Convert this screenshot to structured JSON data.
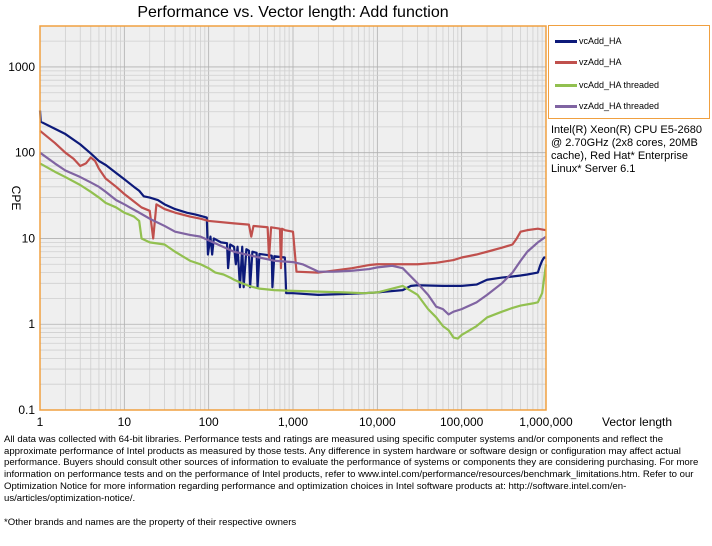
{
  "chart_data": {
    "type": "line",
    "title": "Performance vs. Vector length: Add function",
    "xlabel": "Vector length",
    "ylabel": "CPE",
    "xscale": "log",
    "yscale": "log",
    "xlim": [
      1,
      1000000
    ],
    "ylim": [
      0.1,
      3000
    ],
    "grid": true,
    "legend_position": "right",
    "x_ticks": [
      "1",
      "10",
      "100",
      "1,000",
      "10,000",
      "100,000",
      "1,000,000"
    ],
    "y_ticks": [
      "0.1",
      "1",
      "10",
      "100",
      "1000"
    ],
    "series": [
      {
        "name": "vcAdd_HA",
        "color": "#0d1a7a",
        "points": [
          [
            1,
            310
          ],
          [
            1.02,
            230
          ],
          [
            1.5,
            190
          ],
          [
            2,
            165
          ],
          [
            3,
            125
          ],
          [
            4,
            98
          ],
          [
            5,
            80
          ],
          [
            6,
            72
          ],
          [
            8,
            58
          ],
          [
            10,
            49
          ],
          [
            13,
            40
          ],
          [
            15,
            36
          ],
          [
            17,
            31
          ],
          [
            20,
            30
          ],
          [
            25,
            28
          ],
          [
            30,
            25
          ],
          [
            40,
            22
          ],
          [
            55,
            20
          ],
          [
            70,
            19
          ],
          [
            95,
            17.5
          ],
          [
            98,
            6.5
          ],
          [
            105,
            10.5
          ],
          [
            110,
            6.5
          ],
          [
            115,
            10
          ],
          [
            140,
            9
          ],
          [
            165,
            8.8
          ],
          [
            170,
            4.5
          ],
          [
            180,
            8.5
          ],
          [
            200,
            8
          ],
          [
            210,
            5
          ],
          [
            220,
            8
          ],
          [
            235,
            2.7
          ],
          [
            250,
            8
          ],
          [
            260,
            2.7
          ],
          [
            280,
            7.5
          ],
          [
            300,
            7.2
          ],
          [
            310,
            2.7
          ],
          [
            330,
            7
          ],
          [
            370,
            6.8
          ],
          [
            380,
            2.7
          ],
          [
            400,
            6.6
          ],
          [
            500,
            6.4
          ],
          [
            560,
            6.3
          ],
          [
            570,
            2.7
          ],
          [
            600,
            6.2
          ],
          [
            800,
            6
          ],
          [
            830,
            2.3
          ],
          [
            1000,
            2.3
          ],
          [
            2000,
            2.2
          ],
          [
            4000,
            2.25
          ],
          [
            7000,
            2.3
          ],
          [
            10000,
            2.35
          ],
          [
            20000,
            2.5
          ],
          [
            25000,
            2.8
          ],
          [
            30000,
            2.85
          ],
          [
            60000,
            2.8
          ],
          [
            100000,
            2.8
          ],
          [
            150000,
            2.9
          ],
          [
            200000,
            3.3
          ],
          [
            300000,
            3.5
          ],
          [
            400000,
            3.6
          ],
          [
            500000,
            3.7
          ],
          [
            600000,
            3.8
          ],
          [
            800000,
            4
          ],
          [
            850000,
            4.8
          ],
          [
            900000,
            5.5
          ],
          [
            950000,
            6
          ],
          [
            1000000,
            6
          ]
        ]
      },
      {
        "name": "vzAdd_HA",
        "color": "#c0504d",
        "points": [
          [
            1,
            180
          ],
          [
            1.5,
            130
          ],
          [
            2,
            100
          ],
          [
            2.5,
            85
          ],
          [
            3,
            70
          ],
          [
            3.5,
            75
          ],
          [
            4,
            88
          ],
          [
            4.5,
            80
          ],
          [
            5,
            65
          ],
          [
            6,
            50
          ],
          [
            8,
            40
          ],
          [
            10,
            33
          ],
          [
            13,
            27
          ],
          [
            16,
            23
          ],
          [
            20,
            21
          ],
          [
            22,
            10
          ],
          [
            24,
            25
          ],
          [
            30,
            22
          ],
          [
            40,
            20
          ],
          [
            60,
            18
          ],
          [
            80,
            17
          ],
          [
            100,
            16
          ],
          [
            200,
            15
          ],
          [
            300,
            14.5
          ],
          [
            320,
            10.5
          ],
          [
            340,
            14
          ],
          [
            500,
            13.5
          ],
          [
            520,
            6
          ],
          [
            550,
            13.5
          ],
          [
            700,
            13
          ],
          [
            720,
            4.5
          ],
          [
            740,
            13
          ],
          [
            800,
            12.5
          ],
          [
            1000,
            12
          ],
          [
            1100,
            4.1
          ],
          [
            2000,
            4
          ],
          [
            5000,
            4.5
          ],
          [
            8000,
            4.9
          ],
          [
            10000,
            5
          ],
          [
            20000,
            5
          ],
          [
            30000,
            5
          ],
          [
            50000,
            5.2
          ],
          [
            80000,
            5.6
          ],
          [
            100000,
            6
          ],
          [
            150000,
            6.5
          ],
          [
            200000,
            7
          ],
          [
            300000,
            7.8
          ],
          [
            400000,
            8.5
          ],
          [
            450000,
            10
          ],
          [
            500000,
            12
          ],
          [
            600000,
            12.5
          ],
          [
            800000,
            13
          ],
          [
            1000000,
            12.5
          ]
        ]
      },
      {
        "name": "vcAdd_HA threaded",
        "color": "#92c050",
        "points": [
          [
            1,
            75
          ],
          [
            1.5,
            60
          ],
          [
            2,
            52
          ],
          [
            3,
            42
          ],
          [
            4,
            35
          ],
          [
            5,
            30
          ],
          [
            6,
            26
          ],
          [
            8,
            23
          ],
          [
            10,
            20
          ],
          [
            13,
            18
          ],
          [
            15,
            16
          ],
          [
            16,
            10
          ],
          [
            20,
            9
          ],
          [
            30,
            8.5
          ],
          [
            40,
            7
          ],
          [
            60,
            5.5
          ],
          [
            80,
            5
          ],
          [
            100,
            4.5
          ],
          [
            120,
            4
          ],
          [
            150,
            3.8
          ],
          [
            180,
            3.5
          ],
          [
            200,
            3.3
          ],
          [
            250,
            3
          ],
          [
            300,
            2.8
          ],
          [
            400,
            2.6
          ],
          [
            600,
            2.5
          ],
          [
            1000,
            2.45
          ],
          [
            2000,
            2.4
          ],
          [
            4000,
            2.35
          ],
          [
            7000,
            2.3
          ],
          [
            10000,
            2.35
          ],
          [
            20000,
            2.8
          ],
          [
            30000,
            2.2
          ],
          [
            40000,
            1.5
          ],
          [
            50000,
            1.2
          ],
          [
            60000,
            0.95
          ],
          [
            70000,
            0.85
          ],
          [
            80000,
            0.7
          ],
          [
            90000,
            0.68
          ],
          [
            100000,
            0.75
          ],
          [
            150000,
            0.95
          ],
          [
            200000,
            1.2
          ],
          [
            300000,
            1.4
          ],
          [
            400000,
            1.55
          ],
          [
            500000,
            1.65
          ],
          [
            700000,
            1.75
          ],
          [
            800000,
            1.8
          ],
          [
            900000,
            2.3
          ],
          [
            1000000,
            5
          ]
        ]
      },
      {
        "name": "vzAdd_HA threaded",
        "color": "#8064a2",
        "points": [
          [
            1,
            100
          ],
          [
            1.5,
            75
          ],
          [
            2,
            62
          ],
          [
            3,
            52
          ],
          [
            4,
            45
          ],
          [
            5,
            40
          ],
          [
            6,
            35
          ],
          [
            8,
            28
          ],
          [
            10,
            25
          ],
          [
            15,
            20
          ],
          [
            20,
            17
          ],
          [
            30,
            14
          ],
          [
            40,
            12
          ],
          [
            60,
            11
          ],
          [
            80,
            10.5
          ],
          [
            100,
            9.5
          ],
          [
            200,
            7
          ],
          [
            400,
            6
          ],
          [
            600,
            5.5
          ],
          [
            1000,
            5.3
          ],
          [
            1300,
            5
          ],
          [
            2000,
            4.1
          ],
          [
            3000,
            4.1
          ],
          [
            5000,
            4.2
          ],
          [
            8000,
            4.4
          ],
          [
            10000,
            4.6
          ],
          [
            15000,
            4.8
          ],
          [
            20000,
            4.5
          ],
          [
            25000,
            3.6
          ],
          [
            30000,
            3
          ],
          [
            40000,
            2.2
          ],
          [
            50000,
            1.6
          ],
          [
            60000,
            1.5
          ],
          [
            70000,
            1.3
          ],
          [
            80000,
            1.4
          ],
          [
            100000,
            1.5
          ],
          [
            150000,
            1.8
          ],
          [
            200000,
            2.2
          ],
          [
            300000,
            3
          ],
          [
            400000,
            4
          ],
          [
            500000,
            5.5
          ],
          [
            600000,
            7
          ],
          [
            800000,
            9
          ],
          [
            1000000,
            10.5
          ]
        ]
      }
    ]
  },
  "note": "Intel(R) Xeon(R) CPU E5-2680 @ 2.70GHz (2x8 cores, 20MB cache), Red Hat* Enterprise Linux* Server 6.1",
  "disclaimer": "All data was collected with 64-bit libraries. Performance tests and ratings are measured using specific computer systems and/or components and reflect the approximate performance of Intel products as measured by those tests. Any difference in system hardware or software design or configuration may affect actual performance. Buyers should consult other sources of information to evaluate the performance of systems or components they are considering purchasing. For more information on performance tests and on the performance of Intel products, refer to www.intel.com/performance/resources/benchmark_limitations.htm. Refer to our Optimization Notice for more information regarding performance and optimization choices in Intel software products at: http://software.intel.com/en-us/articles/optimization-notice/.",
  "footnote": "*Other brands and names are the property of their respective owners"
}
